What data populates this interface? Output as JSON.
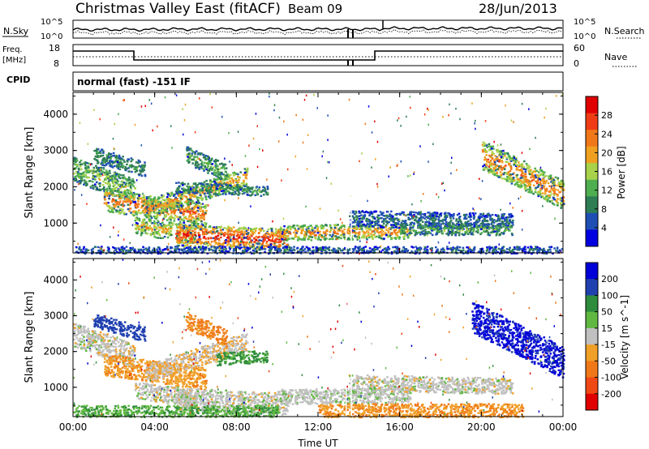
{
  "header": {
    "station": "Christmas Valley East (fitACF)",
    "beam": "Beam 09",
    "date": "28/Jun/2013"
  },
  "mini_panels": {
    "noise": {
      "left_label": "N.Sky",
      "left_ticks": [
        "10^5",
        "10^0"
      ],
      "right_label": "N.Search",
      "right_ticks": [
        "10^5",
        "10^0"
      ]
    },
    "freq": {
      "left_label_1": "Freq.",
      "left_label_2": "[MHz]",
      "left_ticks": [
        "18",
        "8"
      ],
      "right_label": "Nave",
      "right_ticks": [
        "60",
        "0"
      ]
    },
    "cpid": {
      "label": "CPID",
      "value": "normal (fast) -151 IF"
    }
  },
  "colors": {
    "power": [
      "#0000e0",
      "#1f4fb4",
      "#2e7d55",
      "#4fae4f",
      "#a8d24a",
      "#f0a020",
      "#f07818",
      "#f03c14",
      "#e00000"
    ],
    "velocity": [
      "#e00000",
      "#f04814",
      "#f07818",
      "#f0a028",
      "#c0c0c0",
      "#60b840",
      "#2e8c3c",
      "#2040b0",
      "#0000d8"
    ]
  },
  "chart_data": [
    {
      "type": "heatmap",
      "ylabel": "Slant Range [km]",
      "yticks": [
        "4000",
        "3000",
        "2000",
        "1000"
      ],
      "ylim": [
        180,
        4600
      ],
      "xlim": [
        0,
        24
      ],
      "xticks": [
        "00:00",
        "04:00",
        "08:00",
        "12:00",
        "16:00",
        "20:00",
        "00:00"
      ],
      "colorbar": {
        "label": "Power [dB]",
        "ticks": [
          "28",
          "24",
          "20",
          "16",
          "12",
          "8",
          "4"
        ],
        "range": [
          0,
          30
        ]
      },
      "bands": [
        {
          "t0": 0.0,
          "t1": 3.0,
          "r0": 2500,
          "r1": 1900,
          "h": 420,
          "v": 14
        },
        {
          "t0": 1.5,
          "t1": 6.5,
          "r0": 1650,
          "r1": 1250,
          "h": 380,
          "v": 22
        },
        {
          "t0": 3.5,
          "t1": 8.5,
          "r0": 1400,
          "r1": 2300,
          "h": 320,
          "v": 19
        },
        {
          "t0": 5.0,
          "t1": 9.5,
          "r0": 2000,
          "r1": 1900,
          "h": 180,
          "v": 11
        },
        {
          "t0": 3.0,
          "t1": 6.0,
          "r0": 950,
          "r1": 700,
          "h": 300,
          "v": 18
        },
        {
          "t0": 5.0,
          "t1": 10.5,
          "r0": 700,
          "r1": 550,
          "h": 380,
          "v": 25
        },
        {
          "t0": 10.0,
          "t1": 16.5,
          "r0": 750,
          "r1": 800,
          "h": 260,
          "v": 20
        },
        {
          "t0": 13.5,
          "t1": 21.5,
          "r0": 1150,
          "r1": 1050,
          "h": 280,
          "v": 7
        },
        {
          "t0": 16.0,
          "t1": 21.5,
          "r0": 850,
          "r1": 850,
          "h": 200,
          "v": 12
        },
        {
          "t0": 1.0,
          "t1": 3.5,
          "r0": 2900,
          "r1": 2500,
          "h": 260,
          "v": 10
        },
        {
          "t0": 5.5,
          "t1": 7.5,
          "r0": 2900,
          "r1": 2400,
          "h": 300,
          "v": 12
        },
        {
          "t0": 20.0,
          "t1": 24.0,
          "r0": 2900,
          "r1": 1800,
          "h": 500,
          "v": 21
        },
        {
          "t0": 0.0,
          "t1": 24.0,
          "r0": 280,
          "r1": 280,
          "h": 120,
          "v": 6
        }
      ]
    },
    {
      "type": "heatmap",
      "ylabel": "Slant Range [km]",
      "yticks": [
        "4000",
        "3000",
        "2000",
        "1000"
      ],
      "ylim": [
        180,
        4600
      ],
      "xlim": [
        0,
        24
      ],
      "xticks": [
        "00:00",
        "04:00",
        "08:00",
        "12:00",
        "16:00",
        "20:00",
        "00:00"
      ],
      "xlabel": "Time UT",
      "colorbar": {
        "label": "Velocity [m s^-1]",
        "ticks": [
          "200",
          "100",
          "50",
          "15",
          "-15",
          "-50",
          "-100",
          "-200"
        ],
        "range": [
          -250,
          250
        ]
      },
      "bands": [
        {
          "t0": 0.0,
          "t1": 3.0,
          "r0": 2500,
          "r1": 1900,
          "h": 420,
          "v": 0
        },
        {
          "t0": 1.5,
          "t1": 6.5,
          "r0": 1650,
          "r1": 1250,
          "h": 380,
          "v": -40
        },
        {
          "t0": 3.5,
          "t1": 8.5,
          "r0": 1400,
          "r1": 2300,
          "h": 320,
          "v": -10
        },
        {
          "t0": 7.0,
          "t1": 9.5,
          "r0": 1800,
          "r1": 1900,
          "h": 220,
          "v": 60
        },
        {
          "t0": 3.0,
          "t1": 6.0,
          "r0": 950,
          "r1": 700,
          "h": 300,
          "v": 0
        },
        {
          "t0": 5.0,
          "t1": 10.5,
          "r0": 700,
          "r1": 550,
          "h": 380,
          "v": 0
        },
        {
          "t0": 10.0,
          "t1": 16.5,
          "r0": 750,
          "r1": 800,
          "h": 260,
          "v": 5
        },
        {
          "t0": 13.5,
          "t1": 21.5,
          "r0": 1150,
          "r1": 1050,
          "h": 280,
          "v": 0
        },
        {
          "t0": 12.0,
          "t1": 22.0,
          "r0": 350,
          "r1": 350,
          "h": 260,
          "v": -45
        },
        {
          "t0": 0.0,
          "t1": 10.0,
          "r0": 350,
          "r1": 350,
          "h": 200,
          "v": 45
        },
        {
          "t0": 1.0,
          "t1": 3.5,
          "r0": 2900,
          "r1": 2500,
          "h": 260,
          "v": 180
        },
        {
          "t0": 5.5,
          "t1": 7.5,
          "r0": 2900,
          "r1": 2400,
          "h": 300,
          "v": -60
        },
        {
          "t0": 19.5,
          "t1": 24.0,
          "r0": 3000,
          "r1": 1700,
          "h": 550,
          "v": 210
        }
      ]
    }
  ]
}
